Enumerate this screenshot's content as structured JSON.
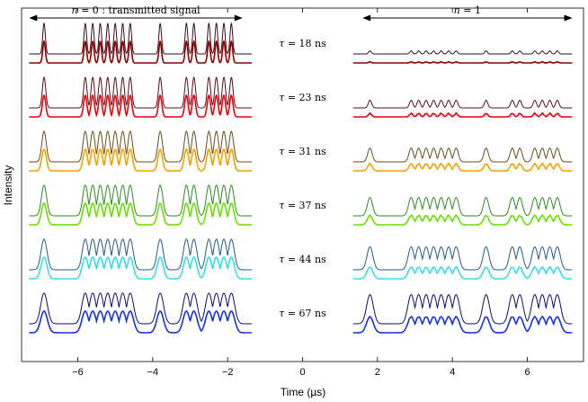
{
  "chart_data": {
    "type": "line",
    "title": "",
    "xlabel": "Time (µs)",
    "ylabel": "Intensity",
    "xlim": [
      -7.5,
      7.5
    ],
    "xticks": [
      -6,
      -4,
      -2,
      0,
      2,
      4,
      6
    ],
    "xtick_labels": [
      "−6",
      "−4",
      "−2",
      "0",
      "2",
      "4",
      "6"
    ],
    "grid": false,
    "legend": "none",
    "annotations": {
      "n0_label": {
        "var": "n",
        "text": " = 0 : transmitted signal",
        "arrow_from_x": -7.3,
        "arrow_to_x": -1.6
      },
      "n1_label": {
        "var": "n",
        "text": " = 1",
        "arrow_from_x": 1.6,
        "arrow_to_x": 7.2
      }
    },
    "pulse_positions_us": [
      -6.9,
      -5.8,
      -5.6,
      -5.4,
      -5.2,
      -5.0,
      -4.8,
      -4.6,
      -3.8,
      -3.1,
      -2.9,
      -2.5,
      -2.3,
      -2.1,
      -1.9
    ],
    "series": [
      {
        "name": "τ = 18 ns",
        "tau_var": "τ",
        "tau_text": " = 18 ns",
        "tau_ns": 18,
        "ref_color": "#3d0a18",
        "color": "#8b0000",
        "mean_n0": 0.55,
        "mean_n1": 0.06,
        "ref_n1": 0.1,
        "ripple": 1.0,
        "pulse_width_us": 0.035
      },
      {
        "name": "τ = 23 ns",
        "tau_var": "τ",
        "tau_text": " = 23 ns",
        "tau_ns": 23,
        "ref_color": "#5a0a14",
        "color": "#e8000c",
        "mean_n0": 0.55,
        "mean_n1": 0.18,
        "ref_n1": 0.25,
        "ripple": 0.7,
        "pulse_width_us": 0.045
      },
      {
        "name": "τ = 31 ns",
        "tau_var": "τ",
        "tau_text": " = 31 ns",
        "tau_ns": 31,
        "ref_color": "#6b4a12",
        "color": "#f5a000",
        "mean_n0": 0.55,
        "mean_n1": 0.35,
        "ref_n1": 0.45,
        "ripple": 0.4,
        "pulse_width_us": 0.06
      },
      {
        "name": "τ = 37 ns",
        "tau_var": "τ",
        "tau_text": " = 37 ns",
        "tau_ns": 37,
        "ref_color": "#2a8a22",
        "color": "#66e000",
        "mean_n0": 0.55,
        "mean_n1": 0.45,
        "ref_n1": 0.6,
        "ripple": 0.25,
        "pulse_width_us": 0.07
      },
      {
        "name": "τ = 44 ns",
        "tau_var": "τ",
        "tau_text": " = 44 ns",
        "tau_ns": 44,
        "ref_color": "#1f5a8a",
        "color": "#33ddf0",
        "mean_n0": 0.55,
        "mean_n1": 0.55,
        "ref_n1": 0.75,
        "ripple": 0.15,
        "pulse_width_us": 0.08
      },
      {
        "name": "τ = 67 ns",
        "tau_var": "τ",
        "tau_text": " = 67 ns",
        "tau_ns": 67,
        "ref_color": "#0d0a6b",
        "color": "#1330e6",
        "mean_n0": 0.55,
        "mean_n1": 0.75,
        "ref_n1": 0.95,
        "ripple": 0.1,
        "pulse_width_us": 0.09
      }
    ]
  }
}
